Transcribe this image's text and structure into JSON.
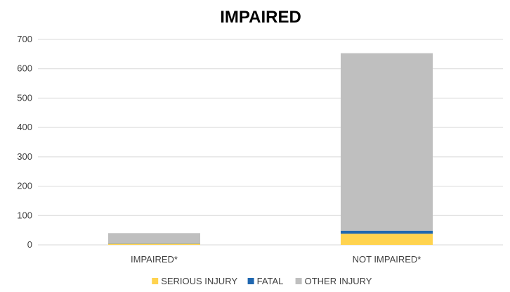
{
  "chart_data": {
    "type": "bar",
    "stacked": true,
    "title": "IMPAIRED",
    "xlabel": "",
    "ylabel": "",
    "categories": [
      "IMPAIRED*",
      "NOT IMPAIRED*"
    ],
    "ylim": [
      0,
      700
    ],
    "yticks": [
      0,
      100,
      200,
      300,
      400,
      500,
      600,
      700
    ],
    "grid": true,
    "legend_position": "bottom",
    "series": [
      {
        "name": "SERIOUS INJURY",
        "color": "#FFD34F",
        "values": [
          4,
          38
        ]
      },
      {
        "name": "FATAL",
        "color": "#1F67B0",
        "values": [
          1,
          10
        ]
      },
      {
        "name": "OTHER INJURY",
        "color": "#BFBFBF",
        "values": [
          35,
          605
        ]
      }
    ]
  }
}
